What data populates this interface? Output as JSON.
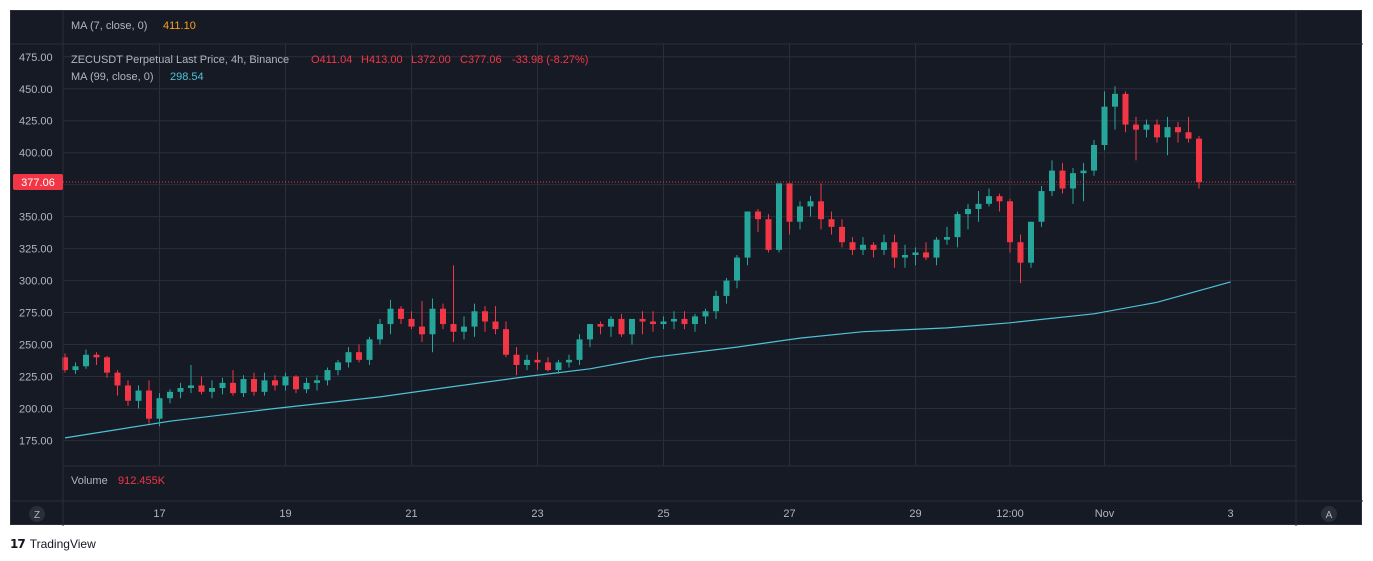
{
  "brand": {
    "icon": "17",
    "name": "TradingView"
  },
  "indicators": {
    "ma7": {
      "label": "MA (7, close, 0)",
      "value": "411.10",
      "color": "#f7a21b"
    },
    "ma99": {
      "label": "MA (99, close, 0)",
      "value": "298.54",
      "color": "#4fc3d7"
    },
    "volume": {
      "label": "Volume",
      "value": "912.455K",
      "color": "#f23645"
    }
  },
  "legend": {
    "symbol": "ZECUSDT Perpetual Last Price, 4h, Binance",
    "open": "O411.04",
    "high": "H413.00",
    "low": "L372.00",
    "close": "C377.06",
    "change": "-33.98 (-8.27%)"
  },
  "price_label": "377.06",
  "colors": {
    "up": "#26a69a",
    "down": "#f23645",
    "background": "#161a25",
    "grid": "#2a2e39",
    "text": "#b2b5be",
    "ma99": "#4fc3d7"
  },
  "scale_buttons": {
    "left": "Z",
    "right": "A"
  },
  "chart_data": {
    "type": "candlestick",
    "title": "ZECUSDT Perpetual Last Price, 4h, Binance",
    "ylim": [
      155,
      485
    ],
    "y_ticks": [
      "475.00",
      "450.00",
      "425.00",
      "400.00",
      "375.00",
      "350.00",
      "325.00",
      "300.00",
      "275.00",
      "250.00",
      "225.00",
      "200.00",
      "175.00"
    ],
    "y_tick_values": [
      475,
      450,
      425,
      400,
      375,
      350,
      325,
      300,
      275,
      250,
      225,
      200,
      175
    ],
    "x_ticks": [
      {
        "label": "17",
        "index": 9
      },
      {
        "label": "19",
        "index": 21
      },
      {
        "label": "21",
        "index": 33
      },
      {
        "label": "23",
        "index": 45
      },
      {
        "label": "25",
        "index": 57
      },
      {
        "label": "27",
        "index": 69
      },
      {
        "label": "29",
        "index": 81
      },
      {
        "label": "12:00",
        "index": 90
      },
      {
        "label": "Nov",
        "index": 99
      },
      {
        "label": "3",
        "index": 111
      }
    ],
    "last_price": 377.06,
    "candles": [
      [
        240,
        243,
        228,
        230
      ],
      [
        230,
        236,
        227,
        233
      ],
      [
        233,
        246,
        231,
        242
      ],
      [
        242,
        244,
        234,
        240
      ],
      [
        240,
        241,
        224,
        228
      ],
      [
        228,
        230,
        210,
        218
      ],
      [
        218,
        222,
        202,
        206
      ],
      [
        206,
        218,
        200,
        214
      ],
      [
        214,
        222,
        188,
        192
      ],
      [
        192,
        212,
        186,
        208
      ],
      [
        208,
        215,
        204,
        213
      ],
      [
        213,
        220,
        208,
        216
      ],
      [
        216,
        234,
        212,
        218
      ],
      [
        218,
        225,
        211,
        213
      ],
      [
        213,
        222,
        208,
        216
      ],
      [
        216,
        224,
        211,
        220
      ],
      [
        220,
        230,
        210,
        212
      ],
      [
        212,
        226,
        209,
        223
      ],
      [
        223,
        228,
        210,
        213
      ],
      [
        213,
        228,
        210,
        222
      ],
      [
        222,
        226,
        214,
        218
      ],
      [
        218,
        228,
        214,
        225
      ],
      [
        225,
        226,
        212,
        215
      ],
      [
        215,
        224,
        212,
        220
      ],
      [
        220,
        226,
        214,
        222
      ],
      [
        222,
        232,
        218,
        230
      ],
      [
        230,
        238,
        226,
        236
      ],
      [
        236,
        248,
        232,
        244
      ],
      [
        244,
        250,
        236,
        238
      ],
      [
        238,
        256,
        234,
        254
      ],
      [
        254,
        270,
        250,
        266
      ],
      [
        266,
        285,
        258,
        278
      ],
      [
        278,
        280,
        266,
        270
      ],
      [
        270,
        276,
        262,
        264
      ],
      [
        264,
        284,
        252,
        258
      ],
      [
        258,
        286,
        244,
        278
      ],
      [
        278,
        282,
        262,
        266
      ],
      [
        266,
        312,
        252,
        260
      ],
      [
        260,
        272,
        254,
        264
      ],
      [
        264,
        282,
        256,
        276
      ],
      [
        276,
        280,
        260,
        268
      ],
      [
        268,
        280,
        258,
        262
      ],
      [
        262,
        268,
        240,
        242
      ],
      [
        242,
        248,
        226,
        234
      ],
      [
        234,
        242,
        230,
        238
      ],
      [
        238,
        244,
        230,
        236
      ],
      [
        236,
        240,
        229,
        230
      ],
      [
        230,
        238,
        227,
        236
      ],
      [
        236,
        242,
        232,
        238
      ],
      [
        238,
        258,
        234,
        254
      ],
      [
        254,
        266,
        248,
        266
      ],
      [
        266,
        268,
        258,
        264
      ],
      [
        264,
        272,
        256,
        270
      ],
      [
        270,
        274,
        256,
        258
      ],
      [
        258,
        268,
        250,
        270
      ],
      [
        270,
        276,
        258,
        268
      ],
      [
        268,
        276,
        260,
        266
      ],
      [
        266,
        272,
        262,
        268
      ],
      [
        268,
        276,
        262,
        270
      ],
      [
        270,
        276,
        262,
        266
      ],
      [
        266,
        274,
        260,
        272
      ],
      [
        272,
        278,
        266,
        276
      ],
      [
        276,
        292,
        270,
        288
      ],
      [
        288,
        302,
        282,
        300
      ],
      [
        300,
        320,
        294,
        318
      ],
      [
        318,
        354,
        312,
        354
      ],
      [
        354,
        356,
        338,
        348
      ],
      [
        348,
        352,
        322,
        324
      ],
      [
        324,
        376,
        322,
        376
      ],
      [
        376,
        376,
        336,
        346
      ],
      [
        346,
        362,
        340,
        358
      ],
      [
        358,
        366,
        350,
        362
      ],
      [
        362,
        376,
        340,
        348
      ],
      [
        348,
        354,
        336,
        342
      ],
      [
        342,
        348,
        326,
        330
      ],
      [
        330,
        334,
        320,
        324
      ],
      [
        324,
        334,
        320,
        328
      ],
      [
        328,
        330,
        318,
        324
      ],
      [
        324,
        336,
        320,
        330
      ],
      [
        330,
        336,
        310,
        318
      ],
      [
        318,
        328,
        310,
        320
      ],
      [
        320,
        326,
        312,
        322
      ],
      [
        322,
        330,
        316,
        318
      ],
      [
        318,
        334,
        312,
        332
      ],
      [
        332,
        342,
        328,
        334
      ],
      [
        334,
        354,
        326,
        352
      ],
      [
        352,
        360,
        340,
        356
      ],
      [
        356,
        370,
        346,
        360
      ],
      [
        360,
        372,
        358,
        366
      ],
      [
        366,
        368,
        354,
        362
      ],
      [
        362,
        364,
        322,
        330
      ],
      [
        330,
        336,
        298,
        314
      ],
      [
        314,
        346,
        310,
        346
      ],
      [
        346,
        374,
        342,
        370
      ],
      [
        370,
        394,
        366,
        386
      ],
      [
        386,
        392,
        368,
        372
      ],
      [
        372,
        388,
        360,
        384
      ],
      [
        384,
        392,
        362,
        386
      ],
      [
        386,
        410,
        382,
        406
      ],
      [
        406,
        448,
        402,
        436
      ],
      [
        436,
        452,
        418,
        446
      ],
      [
        446,
        448,
        416,
        422
      ],
      [
        422,
        428,
        394,
        418
      ],
      [
        418,
        426,
        412,
        422
      ],
      [
        422,
        426,
        408,
        412
      ],
      [
        412,
        428,
        398,
        420
      ],
      [
        420,
        424,
        408,
        416
      ],
      [
        416,
        428,
        408,
        411
      ],
      [
        411,
        413,
        372,
        377
      ]
    ],
    "ma99": [
      [
        0,
        177
      ],
      [
        10,
        190
      ],
      [
        20,
        200
      ],
      [
        30,
        209
      ],
      [
        36,
        216
      ],
      [
        44,
        225
      ],
      [
        50,
        231
      ],
      [
        56,
        240
      ],
      [
        64,
        248
      ],
      [
        70,
        255
      ],
      [
        76,
        260
      ],
      [
        84,
        263
      ],
      [
        90,
        267
      ],
      [
        98,
        274
      ],
      [
        104,
        283
      ],
      [
        111,
        299
      ]
    ]
  }
}
